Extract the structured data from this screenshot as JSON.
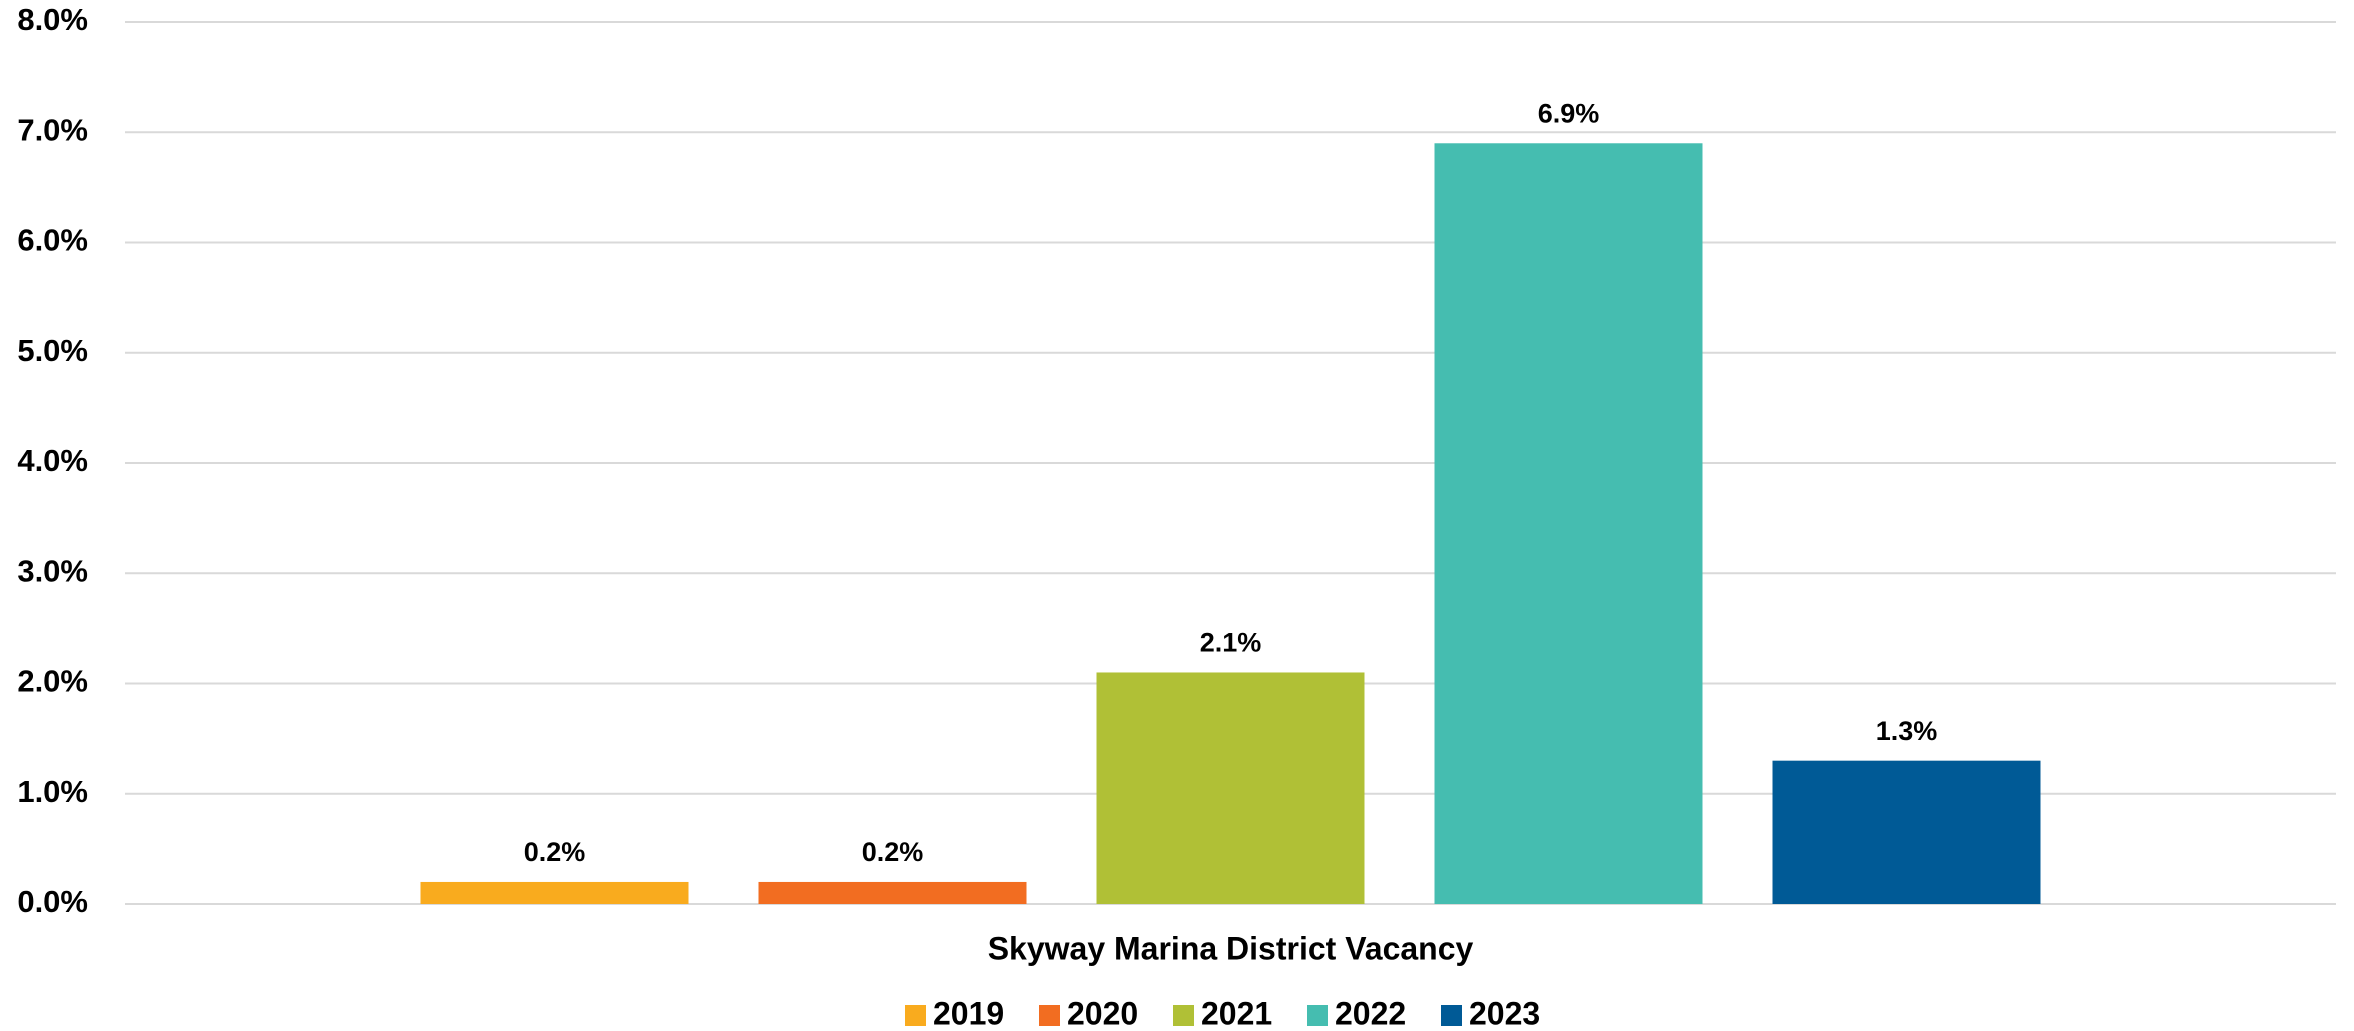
{
  "chart_data": {
    "type": "bar",
    "categories": [
      "Skyway Marina District Vacancy"
    ],
    "series": [
      {
        "name": "2019",
        "color": "#f9ab1e",
        "values": [
          0.2
        ],
        "value_labels": [
          "0.2%"
        ]
      },
      {
        "name": "2020",
        "color": "#f26d21",
        "values": [
          0.2
        ],
        "value_labels": [
          "0.2%"
        ]
      },
      {
        "name": "2021",
        "color": "#b0c036",
        "values": [
          2.1
        ],
        "value_labels": [
          "2.1%"
        ]
      },
      {
        "name": "2022",
        "color": "#45bdb0",
        "values": [
          6.9
        ],
        "value_labels": [
          "6.9%"
        ]
      },
      {
        "name": "2023",
        "color": "#005a96",
        "values": [
          1.3
        ],
        "value_labels": [
          "1.3%"
        ]
      }
    ],
    "ylim": [
      0,
      8
    ],
    "yticks": [
      {
        "value": 0,
        "label": "0.0%"
      },
      {
        "value": 1,
        "label": "1.0%"
      },
      {
        "value": 2,
        "label": "2.0%"
      },
      {
        "value": 3,
        "label": "3.0%"
      },
      {
        "value": 4,
        "label": "4.0%"
      },
      {
        "value": 5,
        "label": "5.0%"
      },
      {
        "value": 6,
        "label": "6.0%"
      },
      {
        "value": 7,
        "label": "7.0%"
      },
      {
        "value": 8,
        "label": "8.0%"
      }
    ],
    "grid": true,
    "legend": "bottom"
  }
}
